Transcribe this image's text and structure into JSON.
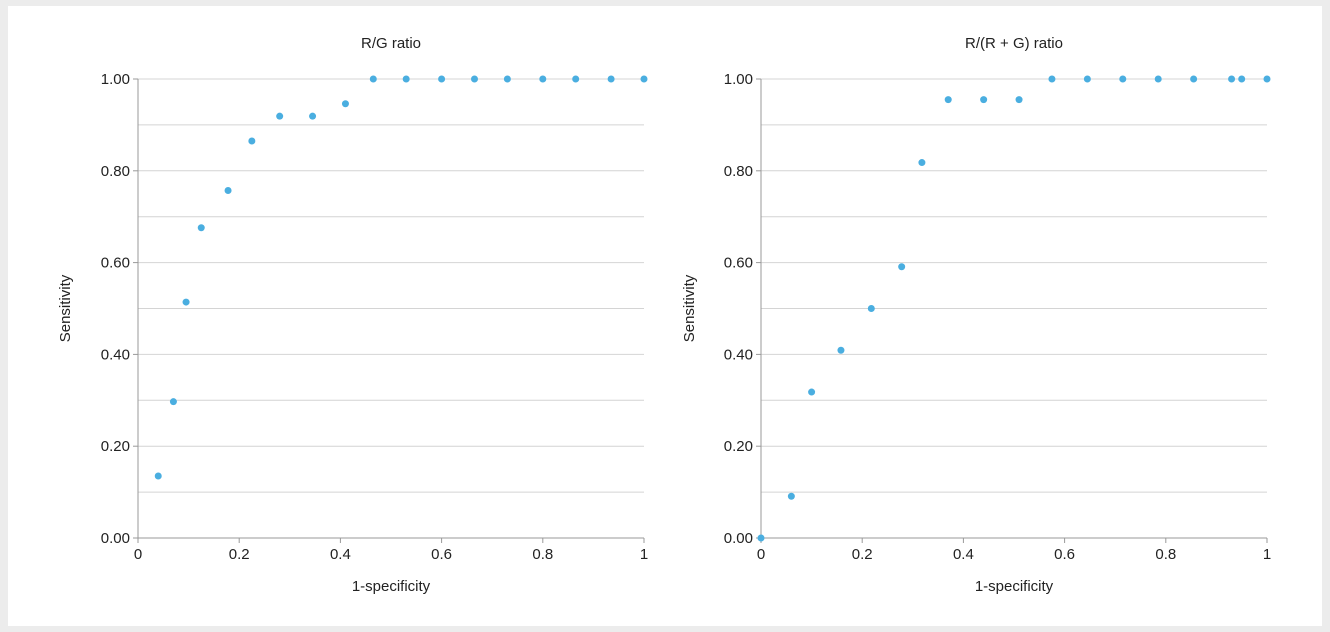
{
  "chart_data": [
    {
      "type": "scatter",
      "title": "R/G ratio",
      "xlabel": "1-specificity",
      "ylabel": "Sensitivity",
      "xlim": [
        0,
        1
      ],
      "ylim": [
        0,
        1
      ],
      "xticks": [
        "0",
        "0.2",
        "0.4",
        "0.6",
        "0.8",
        "1"
      ],
      "yticks": [
        "0.00",
        "0.20",
        "0.40",
        "0.60",
        "0.80",
        "1.00"
      ],
      "grid": true,
      "color": "#4aaee0",
      "points": [
        [
          0.04,
          0.135
        ],
        [
          0.07,
          0.297
        ],
        [
          0.095,
          0.514
        ],
        [
          0.125,
          0.676
        ],
        [
          0.178,
          0.757
        ],
        [
          0.225,
          0.865
        ],
        [
          0.28,
          0.919
        ],
        [
          0.345,
          0.919
        ],
        [
          0.41,
          0.946
        ],
        [
          0.465,
          1.0
        ],
        [
          0.53,
          1.0
        ],
        [
          0.6,
          1.0
        ],
        [
          0.665,
          1.0
        ],
        [
          0.73,
          1.0
        ],
        [
          0.8,
          1.0
        ],
        [
          0.865,
          1.0
        ],
        [
          0.935,
          1.0
        ],
        [
          1.0,
          1.0
        ]
      ]
    },
    {
      "type": "scatter",
      "title": "R/(R + G) ratio",
      "xlabel": "1-specificity",
      "ylabel": "Sensitivity",
      "xlim": [
        0,
        1
      ],
      "ylim": [
        0,
        1
      ],
      "xticks": [
        "0",
        "0.2",
        "0.4",
        "0.6",
        "0.8",
        "1"
      ],
      "yticks": [
        "0.00",
        "0.20",
        "0.40",
        "0.60",
        "0.80",
        "1.00"
      ],
      "grid": true,
      "color": "#4aaee0",
      "points": [
        [
          0.0,
          0.0
        ],
        [
          0.06,
          0.091
        ],
        [
          0.1,
          0.318
        ],
        [
          0.158,
          0.409
        ],
        [
          0.218,
          0.5
        ],
        [
          0.278,
          0.591
        ],
        [
          0.318,
          0.818
        ],
        [
          0.37,
          0.955
        ],
        [
          0.44,
          0.955
        ],
        [
          0.51,
          0.955
        ],
        [
          0.575,
          1.0
        ],
        [
          0.645,
          1.0
        ],
        [
          0.715,
          1.0
        ],
        [
          0.785,
          1.0
        ],
        [
          0.855,
          1.0
        ],
        [
          0.93,
          1.0
        ],
        [
          0.95,
          1.0
        ],
        [
          1.0,
          1.0
        ]
      ]
    }
  ]
}
